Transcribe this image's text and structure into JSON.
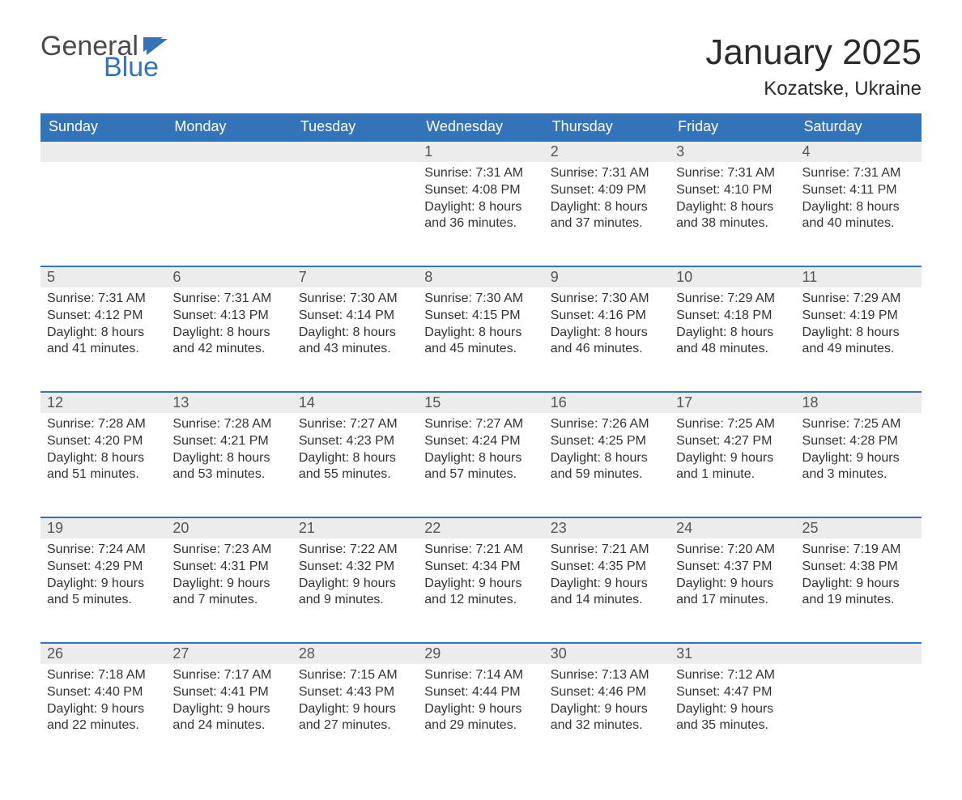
{
  "logo": {
    "word1": "General",
    "word2": "Blue"
  },
  "title": "January 2025",
  "location": "Kozatske, Ukraine",
  "colors": {
    "header_bg": "#3573b9",
    "header_text": "#ffffff",
    "daynum_bg": "#ececec",
    "daynum_border": "#3573b9",
    "text": "#333333",
    "logo_gray": "#4a4a4a",
    "logo_blue": "#3573b9"
  },
  "day_headers": [
    "Sunday",
    "Monday",
    "Tuesday",
    "Wednesday",
    "Thursday",
    "Friday",
    "Saturday"
  ],
  "weeks": [
    [
      null,
      null,
      null,
      {
        "n": "1",
        "sunrise": "7:31 AM",
        "sunset": "4:08 PM",
        "daylight": "8 hours and 36 minutes."
      },
      {
        "n": "2",
        "sunrise": "7:31 AM",
        "sunset": "4:09 PM",
        "daylight": "8 hours and 37 minutes."
      },
      {
        "n": "3",
        "sunrise": "7:31 AM",
        "sunset": "4:10 PM",
        "daylight": "8 hours and 38 minutes."
      },
      {
        "n": "4",
        "sunrise": "7:31 AM",
        "sunset": "4:11 PM",
        "daylight": "8 hours and 40 minutes."
      }
    ],
    [
      {
        "n": "5",
        "sunrise": "7:31 AM",
        "sunset": "4:12 PM",
        "daylight": "8 hours and 41 minutes."
      },
      {
        "n": "6",
        "sunrise": "7:31 AM",
        "sunset": "4:13 PM",
        "daylight": "8 hours and 42 minutes."
      },
      {
        "n": "7",
        "sunrise": "7:30 AM",
        "sunset": "4:14 PM",
        "daylight": "8 hours and 43 minutes."
      },
      {
        "n": "8",
        "sunrise": "7:30 AM",
        "sunset": "4:15 PM",
        "daylight": "8 hours and 45 minutes."
      },
      {
        "n": "9",
        "sunrise": "7:30 AM",
        "sunset": "4:16 PM",
        "daylight": "8 hours and 46 minutes."
      },
      {
        "n": "10",
        "sunrise": "7:29 AM",
        "sunset": "4:18 PM",
        "daylight": "8 hours and 48 minutes."
      },
      {
        "n": "11",
        "sunrise": "7:29 AM",
        "sunset": "4:19 PM",
        "daylight": "8 hours and 49 minutes."
      }
    ],
    [
      {
        "n": "12",
        "sunrise": "7:28 AM",
        "sunset": "4:20 PM",
        "daylight": "8 hours and 51 minutes."
      },
      {
        "n": "13",
        "sunrise": "7:28 AM",
        "sunset": "4:21 PM",
        "daylight": "8 hours and 53 minutes."
      },
      {
        "n": "14",
        "sunrise": "7:27 AM",
        "sunset": "4:23 PM",
        "daylight": "8 hours and 55 minutes."
      },
      {
        "n": "15",
        "sunrise": "7:27 AM",
        "sunset": "4:24 PM",
        "daylight": "8 hours and 57 minutes."
      },
      {
        "n": "16",
        "sunrise": "7:26 AM",
        "sunset": "4:25 PM",
        "daylight": "8 hours and 59 minutes."
      },
      {
        "n": "17",
        "sunrise": "7:25 AM",
        "sunset": "4:27 PM",
        "daylight": "9 hours and 1 minute."
      },
      {
        "n": "18",
        "sunrise": "7:25 AM",
        "sunset": "4:28 PM",
        "daylight": "9 hours and 3 minutes."
      }
    ],
    [
      {
        "n": "19",
        "sunrise": "7:24 AM",
        "sunset": "4:29 PM",
        "daylight": "9 hours and 5 minutes."
      },
      {
        "n": "20",
        "sunrise": "7:23 AM",
        "sunset": "4:31 PM",
        "daylight": "9 hours and 7 minutes."
      },
      {
        "n": "21",
        "sunrise": "7:22 AM",
        "sunset": "4:32 PM",
        "daylight": "9 hours and 9 minutes."
      },
      {
        "n": "22",
        "sunrise": "7:21 AM",
        "sunset": "4:34 PM",
        "daylight": "9 hours and 12 minutes."
      },
      {
        "n": "23",
        "sunrise": "7:21 AM",
        "sunset": "4:35 PM",
        "daylight": "9 hours and 14 minutes."
      },
      {
        "n": "24",
        "sunrise": "7:20 AM",
        "sunset": "4:37 PM",
        "daylight": "9 hours and 17 minutes."
      },
      {
        "n": "25",
        "sunrise": "7:19 AM",
        "sunset": "4:38 PM",
        "daylight": "9 hours and 19 minutes."
      }
    ],
    [
      {
        "n": "26",
        "sunrise": "7:18 AM",
        "sunset": "4:40 PM",
        "daylight": "9 hours and 22 minutes."
      },
      {
        "n": "27",
        "sunrise": "7:17 AM",
        "sunset": "4:41 PM",
        "daylight": "9 hours and 24 minutes."
      },
      {
        "n": "28",
        "sunrise": "7:15 AM",
        "sunset": "4:43 PM",
        "daylight": "9 hours and 27 minutes."
      },
      {
        "n": "29",
        "sunrise": "7:14 AM",
        "sunset": "4:44 PM",
        "daylight": "9 hours and 29 minutes."
      },
      {
        "n": "30",
        "sunrise": "7:13 AM",
        "sunset": "4:46 PM",
        "daylight": "9 hours and 32 minutes."
      },
      {
        "n": "31",
        "sunrise": "7:12 AM",
        "sunset": "4:47 PM",
        "daylight": "9 hours and 35 minutes."
      },
      null
    ]
  ],
  "labels": {
    "sunrise": "Sunrise: ",
    "sunset": "Sunset: ",
    "daylight": "Daylight: "
  }
}
